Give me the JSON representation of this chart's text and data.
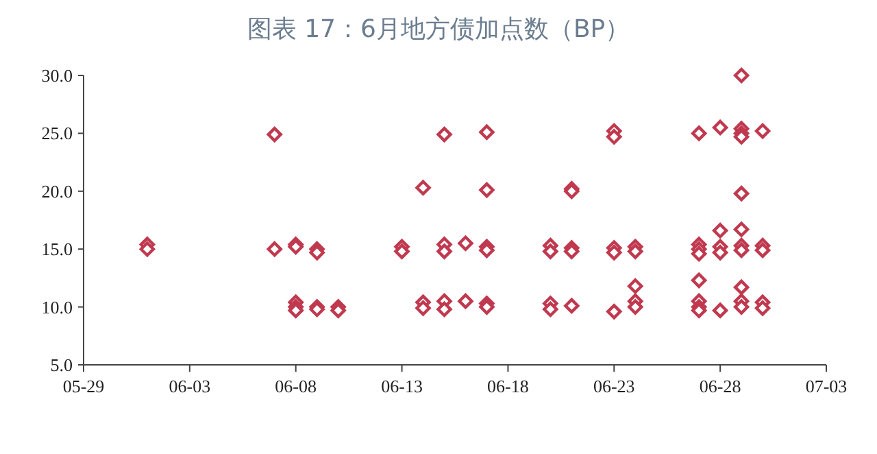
{
  "chart_data": {
    "type": "scatter",
    "title": "图表 17：6月地方债加点数（BP）",
    "marker": "diamond",
    "color": "#c0394f",
    "x": [
      "--06-01",
      "--06-01",
      "--06-07",
      "--06-07",
      "--06-08",
      "--06-08",
      "--06-08",
      "--06-08",
      "--06-08",
      "--06-09",
      "--06-09",
      "--06-09",
      "--06-09",
      "--06-10",
      "--06-10",
      "--06-13",
      "--06-13",
      "--06-14",
      "--06-14",
      "--06-14",
      "--06-15",
      "--06-15",
      "--06-15",
      "--06-15",
      "--06-15",
      "--06-16",
      "--06-16",
      "--06-17",
      "--06-17",
      "--06-17",
      "--06-17",
      "--06-17",
      "--06-17",
      "--06-20",
      "--06-20",
      "--06-20",
      "--06-20",
      "--06-21",
      "--06-21",
      "--06-21",
      "--06-21",
      "--06-21",
      "--06-23",
      "--06-23",
      "--06-23",
      "--06-23",
      "--06-23",
      "--06-24",
      "--06-24",
      "--06-24",
      "--06-24",
      "--06-24",
      "--06-27",
      "--06-27",
      "--06-27",
      "--06-27",
      "--06-27",
      "--06-27",
      "--06-27",
      "--06-27",
      "--06-28",
      "--06-28",
      "--06-28",
      "--06-28",
      "--06-28",
      "--06-29",
      "--06-29",
      "--06-29",
      "--06-29",
      "--06-29",
      "--06-29",
      "--06-29",
      "--06-29",
      "--06-29",
      "--06-29",
      "--06-29",
      "--06-30",
      "--06-30",
      "--06-30",
      "--06-30",
      "--06-30"
    ],
    "values": [
      15.4,
      15.0,
      24.9,
      15.0,
      15.4,
      15.2,
      10.4,
      10.0,
      9.7,
      15.0,
      14.7,
      10.0,
      9.8,
      10.0,
      9.7,
      15.2,
      14.8,
      20.3,
      10.4,
      9.9,
      24.9,
      15.4,
      14.8,
      10.5,
      9.8,
      15.5,
      10.5,
      25.1,
      20.1,
      15.2,
      14.9,
      10.3,
      10.0,
      15.3,
      14.8,
      10.3,
      9.8,
      20.2,
      20.0,
      15.1,
      14.8,
      10.1,
      25.2,
      24.7,
      15.1,
      14.7,
      9.6,
      15.2,
      14.8,
      11.8,
      10.5,
      10.0,
      25.0,
      15.4,
      15.0,
      14.6,
      12.3,
      10.5,
      10.0,
      9.7,
      25.5,
      16.6,
      15.2,
      14.7,
      9.7,
      30.0,
      25.4,
      25.0,
      24.7,
      19.8,
      16.7,
      15.3,
      14.9,
      11.7,
      10.5,
      10.0,
      25.2,
      15.3,
      14.9,
      10.4,
      9.9
    ],
    "xlim": [
      "--05-29",
      "--07-03"
    ],
    "xticks": [
      {
        "value": "--05-29",
        "label": "05-29"
      },
      {
        "value": "--06-03",
        "label": "06-03"
      },
      {
        "value": "--06-08",
        "label": "06-08"
      },
      {
        "value": "--06-13",
        "label": "06-13"
      },
      {
        "value": "--06-18",
        "label": "06-18"
      },
      {
        "value": "--06-23",
        "label": "06-23"
      },
      {
        "value": "--06-28",
        "label": "06-28"
      },
      {
        "value": "--07-03",
        "label": "07-03"
      }
    ],
    "ylim": [
      5,
      30
    ],
    "yticks": [
      {
        "value": 5,
        "label": "5.0"
      },
      {
        "value": 10,
        "label": "10.0"
      },
      {
        "value": 15,
        "label": "15.0"
      },
      {
        "value": 20,
        "label": "20.0"
      },
      {
        "value": 25,
        "label": "25.0"
      },
      {
        "value": 30,
        "label": "30.0"
      }
    ]
  }
}
